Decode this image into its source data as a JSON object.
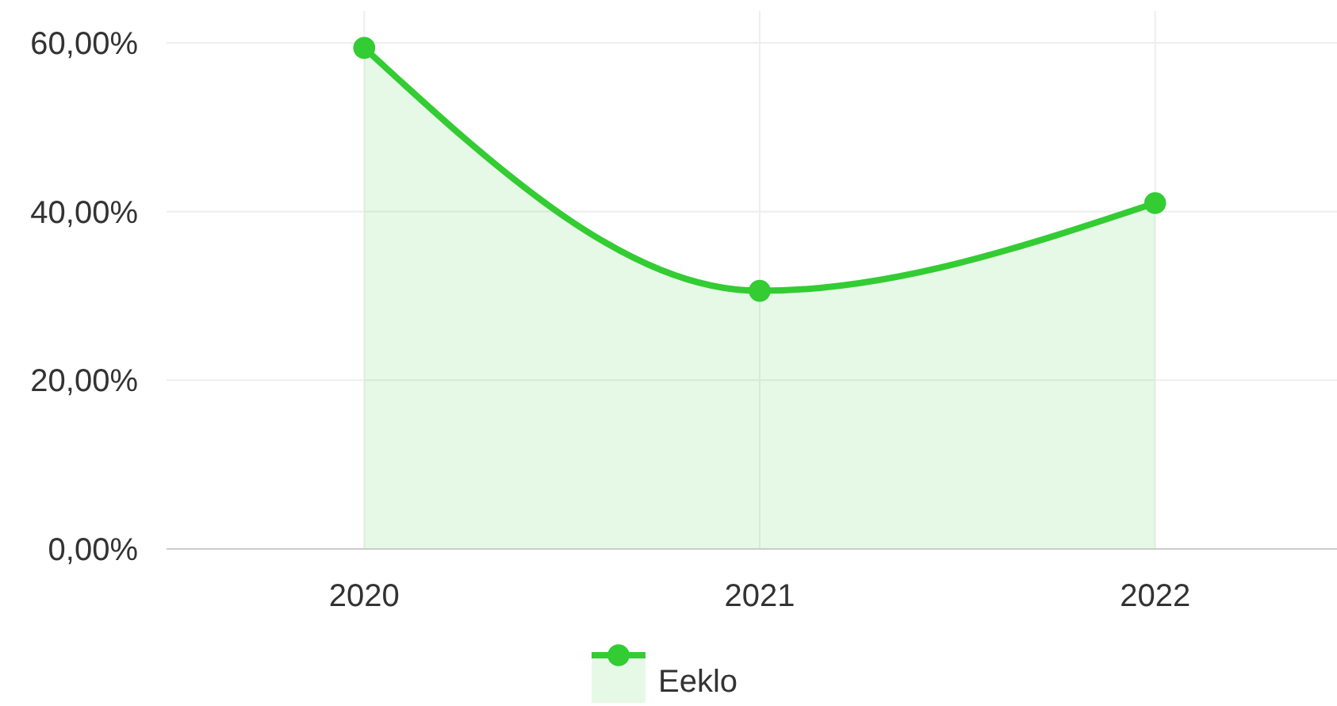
{
  "chart_data": {
    "type": "area",
    "categories": [
      "2020",
      "2021",
      "2022"
    ],
    "series": [
      {
        "name": "Eeklo",
        "color": "#33cc33",
        "values": [
          59.4,
          30.6,
          41.0
        ]
      }
    ],
    "ylim": [
      0,
      60
    ],
    "yticks": [
      {
        "value": 0,
        "label": "0,00%"
      },
      {
        "value": 20,
        "label": "20,00%"
      },
      {
        "value": 40,
        "label": "40,00%"
      },
      {
        "value": 60,
        "label": "60,00%"
      }
    ],
    "grid": true,
    "legend": "bottom",
    "marker": "circle"
  }
}
